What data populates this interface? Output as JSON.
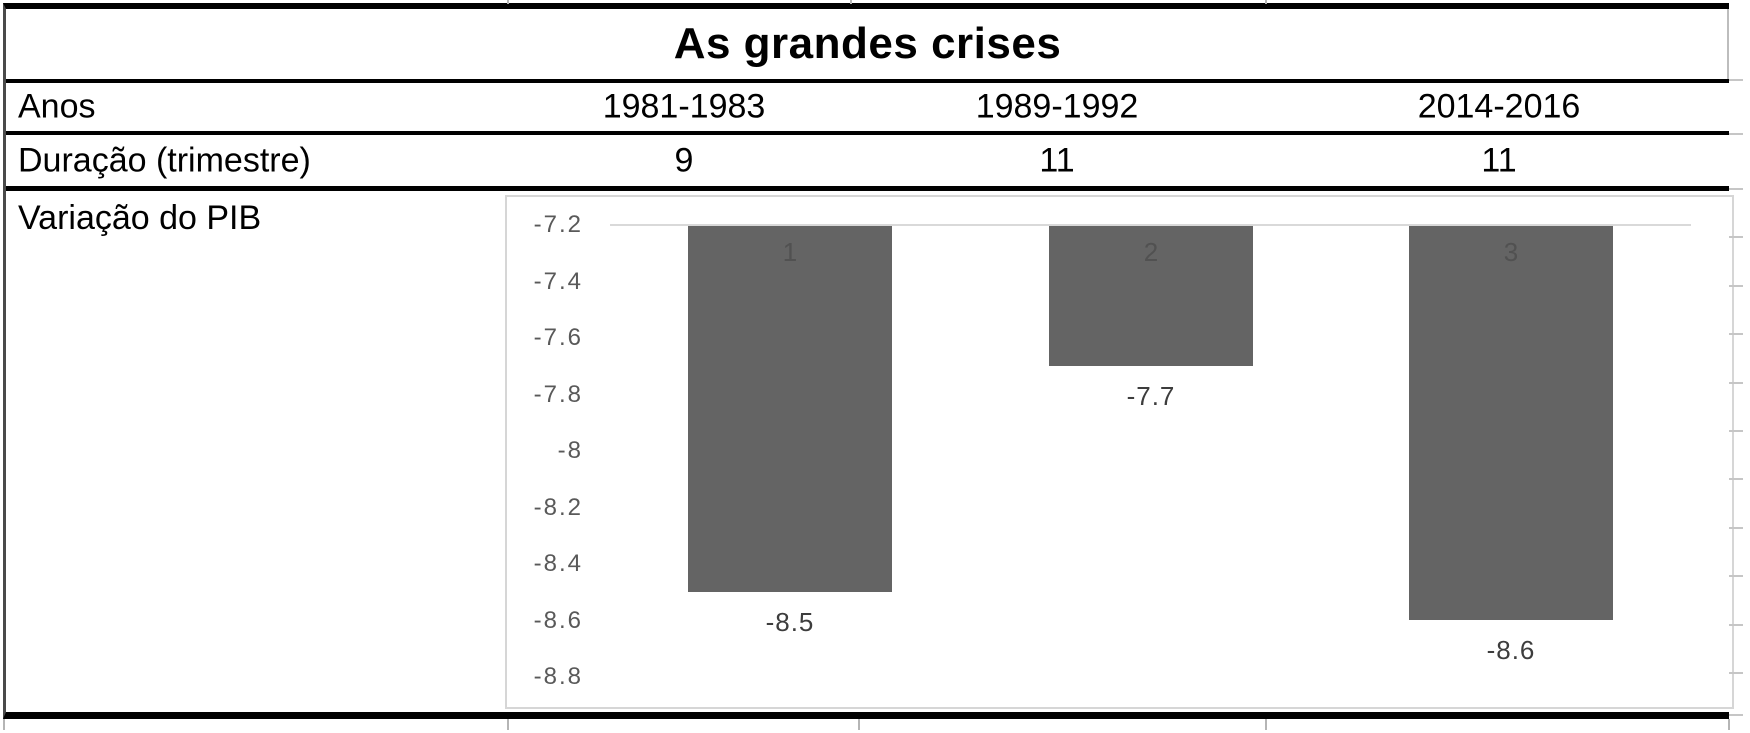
{
  "table": {
    "title": "As grandes crises",
    "rows": [
      {
        "label": "Anos",
        "values": [
          "1981-1983",
          "1989-1992",
          "2014-2016"
        ]
      },
      {
        "label": "Duração (trimestre)",
        "values": [
          "9",
          "11",
          "11"
        ]
      },
      {
        "label": "Variação do PIB",
        "values": []
      }
    ]
  },
  "chart_data": {
    "type": "bar",
    "title": "",
    "categories": [
      "1",
      "2",
      "3"
    ],
    "series": [
      {
        "name": "Variação do PIB",
        "values": [
          -8.5,
          -7.7,
          -8.6
        ]
      }
    ],
    "data_labels": [
      "-8.5",
      "-7.7",
      "-8.6"
    ],
    "in_bar_category_labels": [
      "1",
      "2",
      "3"
    ],
    "y_ticks": [
      -7.2,
      -7.4,
      -7.6,
      -7.8,
      -8,
      -8.2,
      -8.4,
      -8.6,
      -8.8
    ],
    "y_tick_labels": [
      "-7.2",
      "-7.4",
      "-7.6",
      "-7.8",
      "-8",
      "-8.2",
      "-8.4",
      "-8.6",
      "-8.8"
    ],
    "ylim": [
      -8.8,
      -7.2
    ],
    "xlabel": "",
    "ylabel": "",
    "legend": "none",
    "gridlines": "single gridline at -7.2 (bars hang from it)",
    "colors": {
      "bar": "#646464",
      "in_bar_label": "#515151",
      "data_label": "#3d3d3d",
      "axis_label": "#595959",
      "gridline": "#d9d9d9",
      "chart_border": "#d6d6d6",
      "table_border": "#000000"
    }
  }
}
